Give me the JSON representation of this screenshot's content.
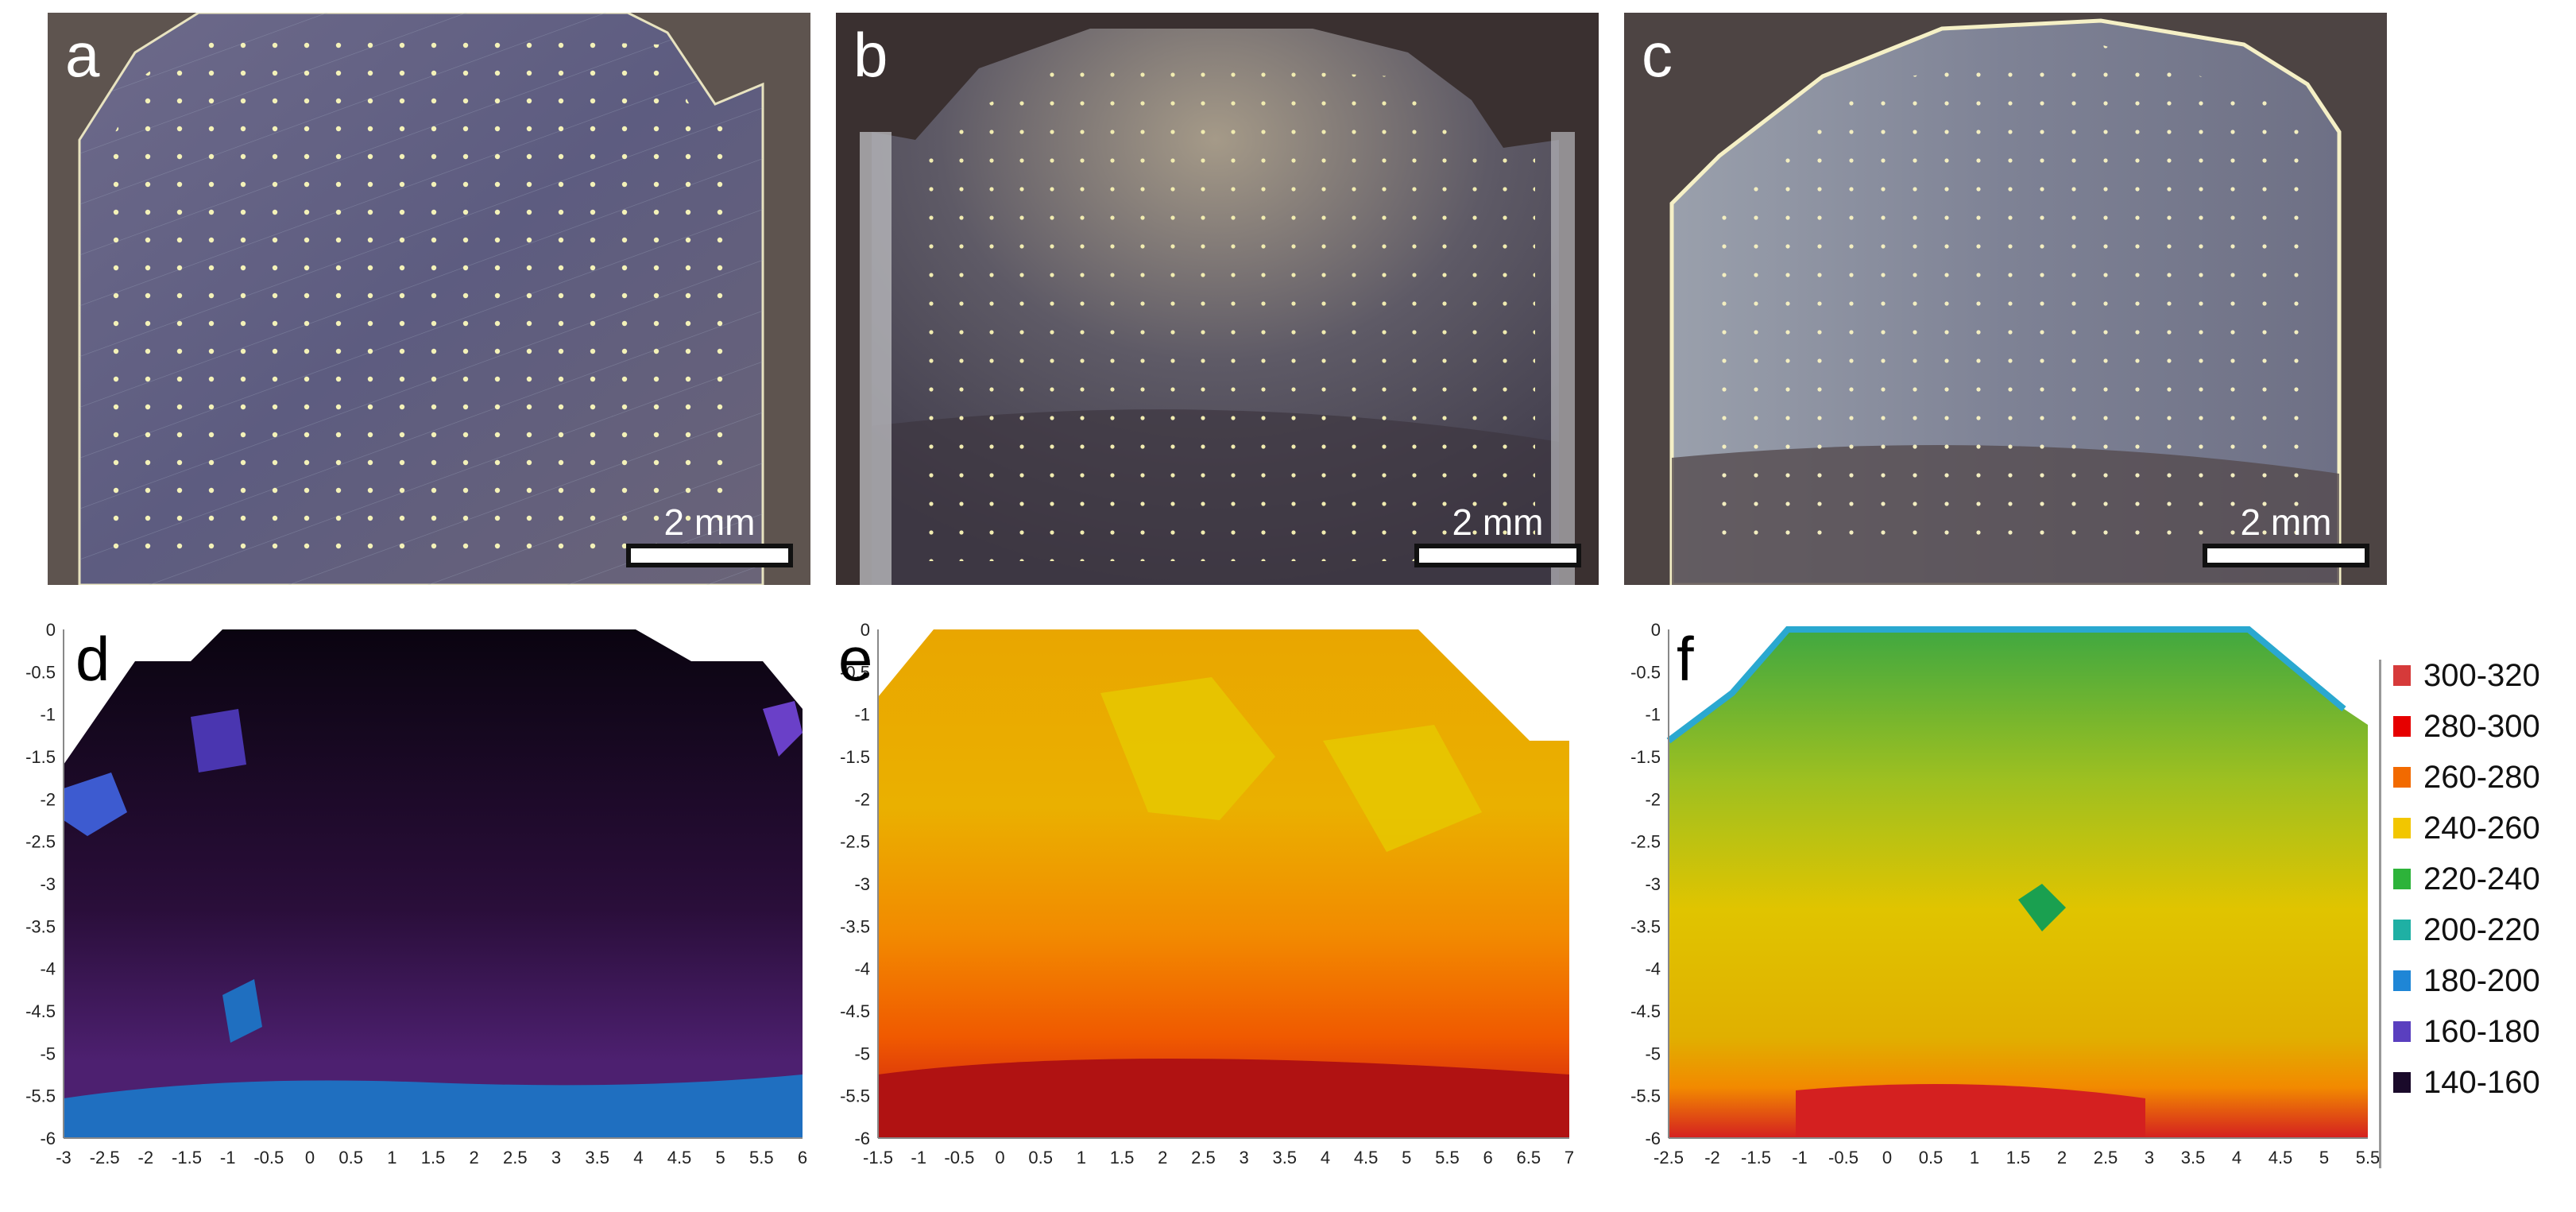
{
  "photos": [
    {
      "letter": "a",
      "scale_label": "2 mm"
    },
    {
      "letter": "b",
      "scale_label": "2 mm"
    },
    {
      "letter": "c",
      "scale_label": "2 mm"
    }
  ],
  "maps": [
    {
      "letter": "d",
      "x_ticks": [
        "-3",
        "-2.5",
        "-2",
        "-1.5",
        "-1",
        "-0.5",
        "0",
        "0.5",
        "1",
        "1.5",
        "2",
        "2.5",
        "3",
        "3.5",
        "4",
        "4.5",
        "5",
        "5.5",
        "6"
      ],
      "y_ticks": [
        "0",
        "-0.5",
        "-1",
        "-1.5",
        "-2",
        "-2.5",
        "-3",
        "-3.5",
        "-4",
        "-4.5",
        "-5",
        "-5.5",
        "-6"
      ]
    },
    {
      "letter": "e",
      "x_ticks": [
        "-1.5",
        "-1",
        "-0.5",
        "0",
        "0.5",
        "1",
        "1.5",
        "2",
        "2.5",
        "3",
        "3.5",
        "4",
        "4.5",
        "5",
        "5.5",
        "6",
        "6.5",
        "7"
      ],
      "y_ticks": [
        "0",
        "-0.5",
        "-1",
        "-1.5",
        "-2",
        "-2.5",
        "-3",
        "-3.5",
        "-4",
        "-4.5",
        "-5",
        "-5.5",
        "-6"
      ]
    },
    {
      "letter": "f",
      "x_ticks": [
        "-2.5",
        "-2",
        "-1.5",
        "-1",
        "-0.5",
        "0",
        "0.5",
        "1",
        "1.5",
        "2",
        "2.5",
        "3",
        "3.5",
        "4",
        "4.5",
        "5",
        "5.5"
      ],
      "y_ticks": [
        "0",
        "-0.5",
        "-1",
        "-1.5",
        "-2",
        "-2.5",
        "-3",
        "-3.5",
        "-4",
        "-4.5",
        "-5",
        "-5.5",
        "-6"
      ]
    }
  ],
  "legend": [
    {
      "label": "300-320",
      "color": "#d63a3a"
    },
    {
      "label": "280-300",
      "color": "#e60000"
    },
    {
      "label": "260-280",
      "color": "#f26a00"
    },
    {
      "label": "240-260",
      "color": "#f2c600"
    },
    {
      "label": "220-240",
      "color": "#2db33a"
    },
    {
      "label": "200-220",
      "color": "#1fb0a4"
    },
    {
      "label": "180-200",
      "color": "#1f86d6"
    },
    {
      "label": "160-180",
      "color": "#5a3fbf"
    },
    {
      "label": "140-160",
      "color": "#1a0a2a"
    }
  ]
}
